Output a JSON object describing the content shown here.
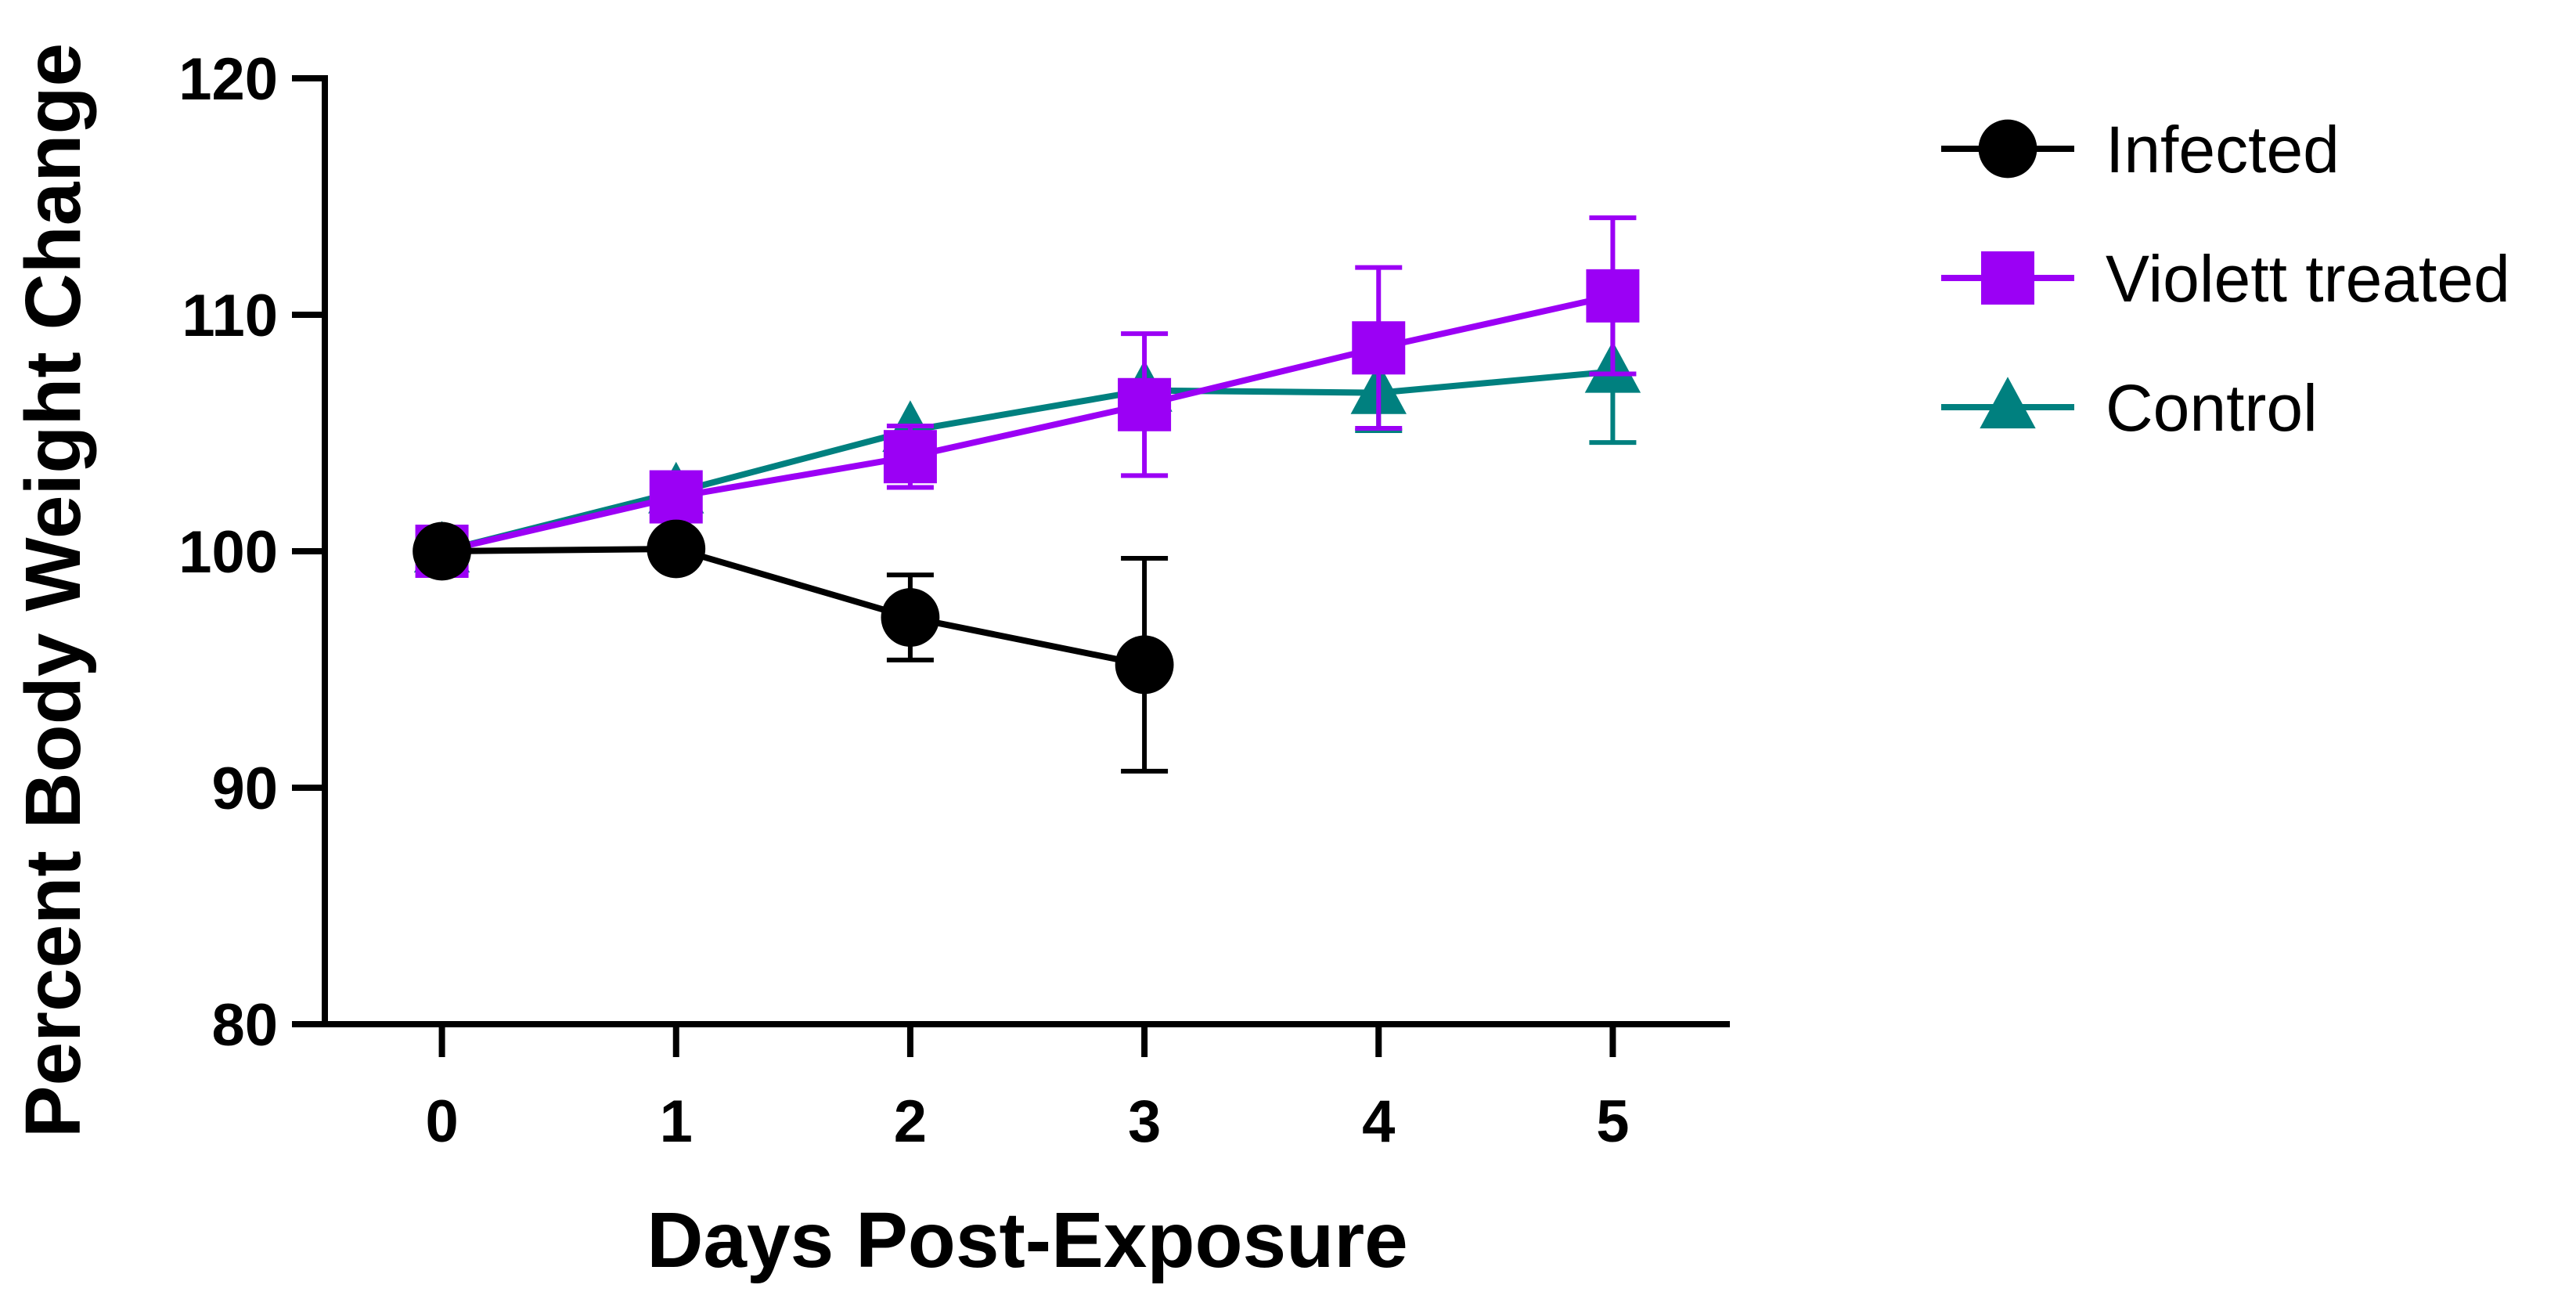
{
  "chart_data": {
    "type": "line",
    "title": "",
    "xlabel": "Days Post-Exposure",
    "ylabel": "Percent Body Weight Change",
    "xlim": [
      -0.5,
      5.5
    ],
    "ylim": [
      80,
      120
    ],
    "xticks": [
      "0",
      "1",
      "2",
      "3",
      "4",
      "5"
    ],
    "yticks": [
      "80",
      "90",
      "100",
      "110",
      "120"
    ],
    "legend_position": "top-right",
    "series": [
      {
        "name": "Infected",
        "color": "#000000",
        "marker": "circle",
        "x": [
          0,
          1,
          2,
          3
        ],
        "values": [
          100.0,
          100.1,
          97.2,
          95.2
        ],
        "err": [
          0,
          0,
          1.8,
          4.5
        ]
      },
      {
        "name": "Violett treated",
        "color": "#9b00f5",
        "marker": "square",
        "x": [
          0,
          1,
          2,
          3,
          4,
          5
        ],
        "values": [
          100.0,
          102.3,
          104.0,
          106.2,
          108.6,
          110.8
        ],
        "err": [
          0,
          0,
          1.3,
          3.0,
          3.4,
          3.3
        ]
      },
      {
        "name": "Control",
        "color": "#00807f",
        "marker": "triangle",
        "x": [
          0,
          1,
          2,
          3,
          4,
          5
        ],
        "values": [
          100.0,
          102.5,
          105.1,
          106.8,
          106.7,
          107.6
        ],
        "err": [
          0,
          0,
          0,
          0,
          1.6,
          3.0
        ]
      }
    ]
  }
}
